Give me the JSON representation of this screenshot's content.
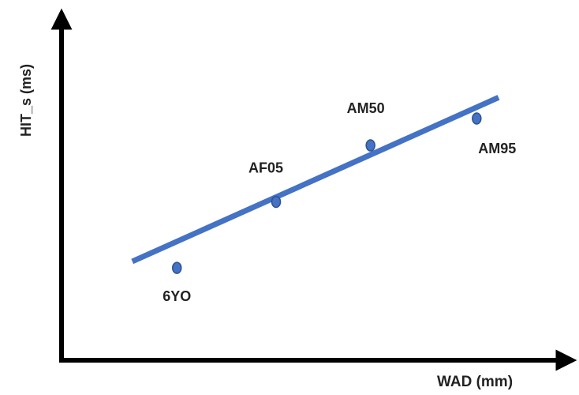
{
  "chart_data": {
    "type": "scatter",
    "xlabel": "WAD (mm)",
    "ylabel": "HIT_s (ms)",
    "points": [
      {
        "label": "6YO",
        "x": 0.264,
        "y": 0.316
      },
      {
        "label": "AF05",
        "x": 0.491,
        "y": 0.542
      },
      {
        "label": "AM50",
        "x": 0.707,
        "y": 0.735
      },
      {
        "label": "AM95",
        "x": 0.95,
        "y": 0.827
      }
    ],
    "trendline": {
      "x_start": 0.162,
      "y_start": 0.338,
      "x_end": 1.0,
      "y_end": 0.899
    },
    "xlim": [
      0,
      1
    ],
    "ylim": [
      0,
      1
    ],
    "grid": false,
    "legend": "none"
  },
  "colors": {
    "axis": "#000000",
    "trendline": "#4472c4",
    "marker_fill": "#4472c4",
    "marker_stroke": "#2f528f",
    "label": "#222222"
  }
}
